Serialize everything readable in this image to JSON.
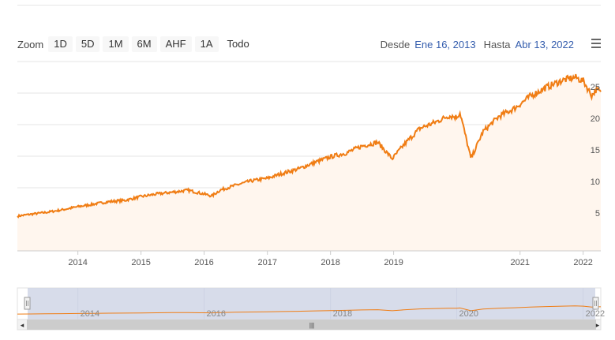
{
  "zoom": {
    "label": "Zoom",
    "buttons": [
      "1D",
      "5D",
      "1M",
      "6M",
      "AHF",
      "1A",
      "Todo"
    ]
  },
  "range": {
    "from_label": "Desde",
    "from_value": "Ene 16, 2013",
    "to_label": "Hasta",
    "to_value": "Abr 13, 2022"
  },
  "colors": {
    "series": "#f07d14",
    "area": "#fff6ee",
    "navigator_mask": "#d0d6e6",
    "grid": "#e6e6e6"
  },
  "navigator": {
    "scrollbar_grip": "|||",
    "left_arrow": "◂",
    "right_arrow": "▸"
  },
  "chart_data": {
    "type": "area",
    "title": "",
    "xlabel": "",
    "ylabel": "",
    "ylim": [
      0,
      30
    ],
    "yticks": [
      5,
      10,
      15,
      20,
      25
    ],
    "grid": true,
    "x_ticks": [
      "2014",
      "2015",
      "2016",
      "2017",
      "2018",
      "2019",
      "2021",
      "2022"
    ],
    "navigator_ticks": [
      "2014",
      "2016",
      "2018",
      "2020",
      "2022"
    ],
    "x": [
      "2013-01-16",
      "2013-04-01",
      "2013-07-01",
      "2013-10-01",
      "2014-01-01",
      "2014-04-01",
      "2014-07-01",
      "2014-10-01",
      "2015-01-01",
      "2015-04-01",
      "2015-07-01",
      "2015-10-01",
      "2016-01-01",
      "2016-02-15",
      "2016-04-01",
      "2016-07-01",
      "2016-10-01",
      "2017-01-01",
      "2017-04-01",
      "2017-07-01",
      "2017-10-01",
      "2018-01-01",
      "2018-04-01",
      "2018-07-01",
      "2018-10-01",
      "2018-12-24",
      "2019-03-01",
      "2019-06-01",
      "2019-09-01",
      "2019-11-15",
      "2019-12-31",
      "2020-01-20",
      "2020-03-23",
      "2020-06-01",
      "2020-09-01",
      "2020-12-01",
      "2021-03-01",
      "2021-06-01",
      "2021-09-01",
      "2021-11-15",
      "2022-01-03",
      "2022-02-20",
      "2022-03-15",
      "2022-04-13"
    ],
    "values": [
      5.5,
      5.8,
      6.1,
      6.5,
      7.0,
      7.4,
      7.8,
      8.0,
      8.6,
      9.0,
      9.3,
      9.6,
      9.0,
      8.7,
      9.6,
      10.4,
      11.1,
      11.5,
      12.3,
      13.0,
      14.0,
      14.9,
      15.5,
      16.6,
      17.2,
      14.6,
      16.8,
      19.4,
      20.4,
      21.4,
      21.2,
      21.9,
      14.6,
      18.9,
      21.3,
      22.6,
      24.5,
      25.9,
      27.0,
      27.5,
      26.9,
      24.6,
      25.5,
      25.2
    ],
    "series": [
      {
        "values": [
          5.5,
          5.8,
          6.1,
          6.5,
          7.0,
          7.4,
          7.8,
          8.0,
          8.6,
          9.0,
          9.3,
          9.6,
          9.0,
          8.7,
          9.6,
          10.4,
          11.1,
          11.5,
          12.3,
          13.0,
          14.0,
          14.9,
          15.5,
          16.6,
          17.2,
          14.6,
          16.8,
          19.4,
          20.4,
          21.4,
          21.2,
          21.9,
          14.6,
          18.9,
          21.3,
          22.6,
          24.5,
          25.9,
          27.0,
          27.5,
          26.9,
          24.6,
          25.5,
          25.2
        ]
      }
    ]
  }
}
